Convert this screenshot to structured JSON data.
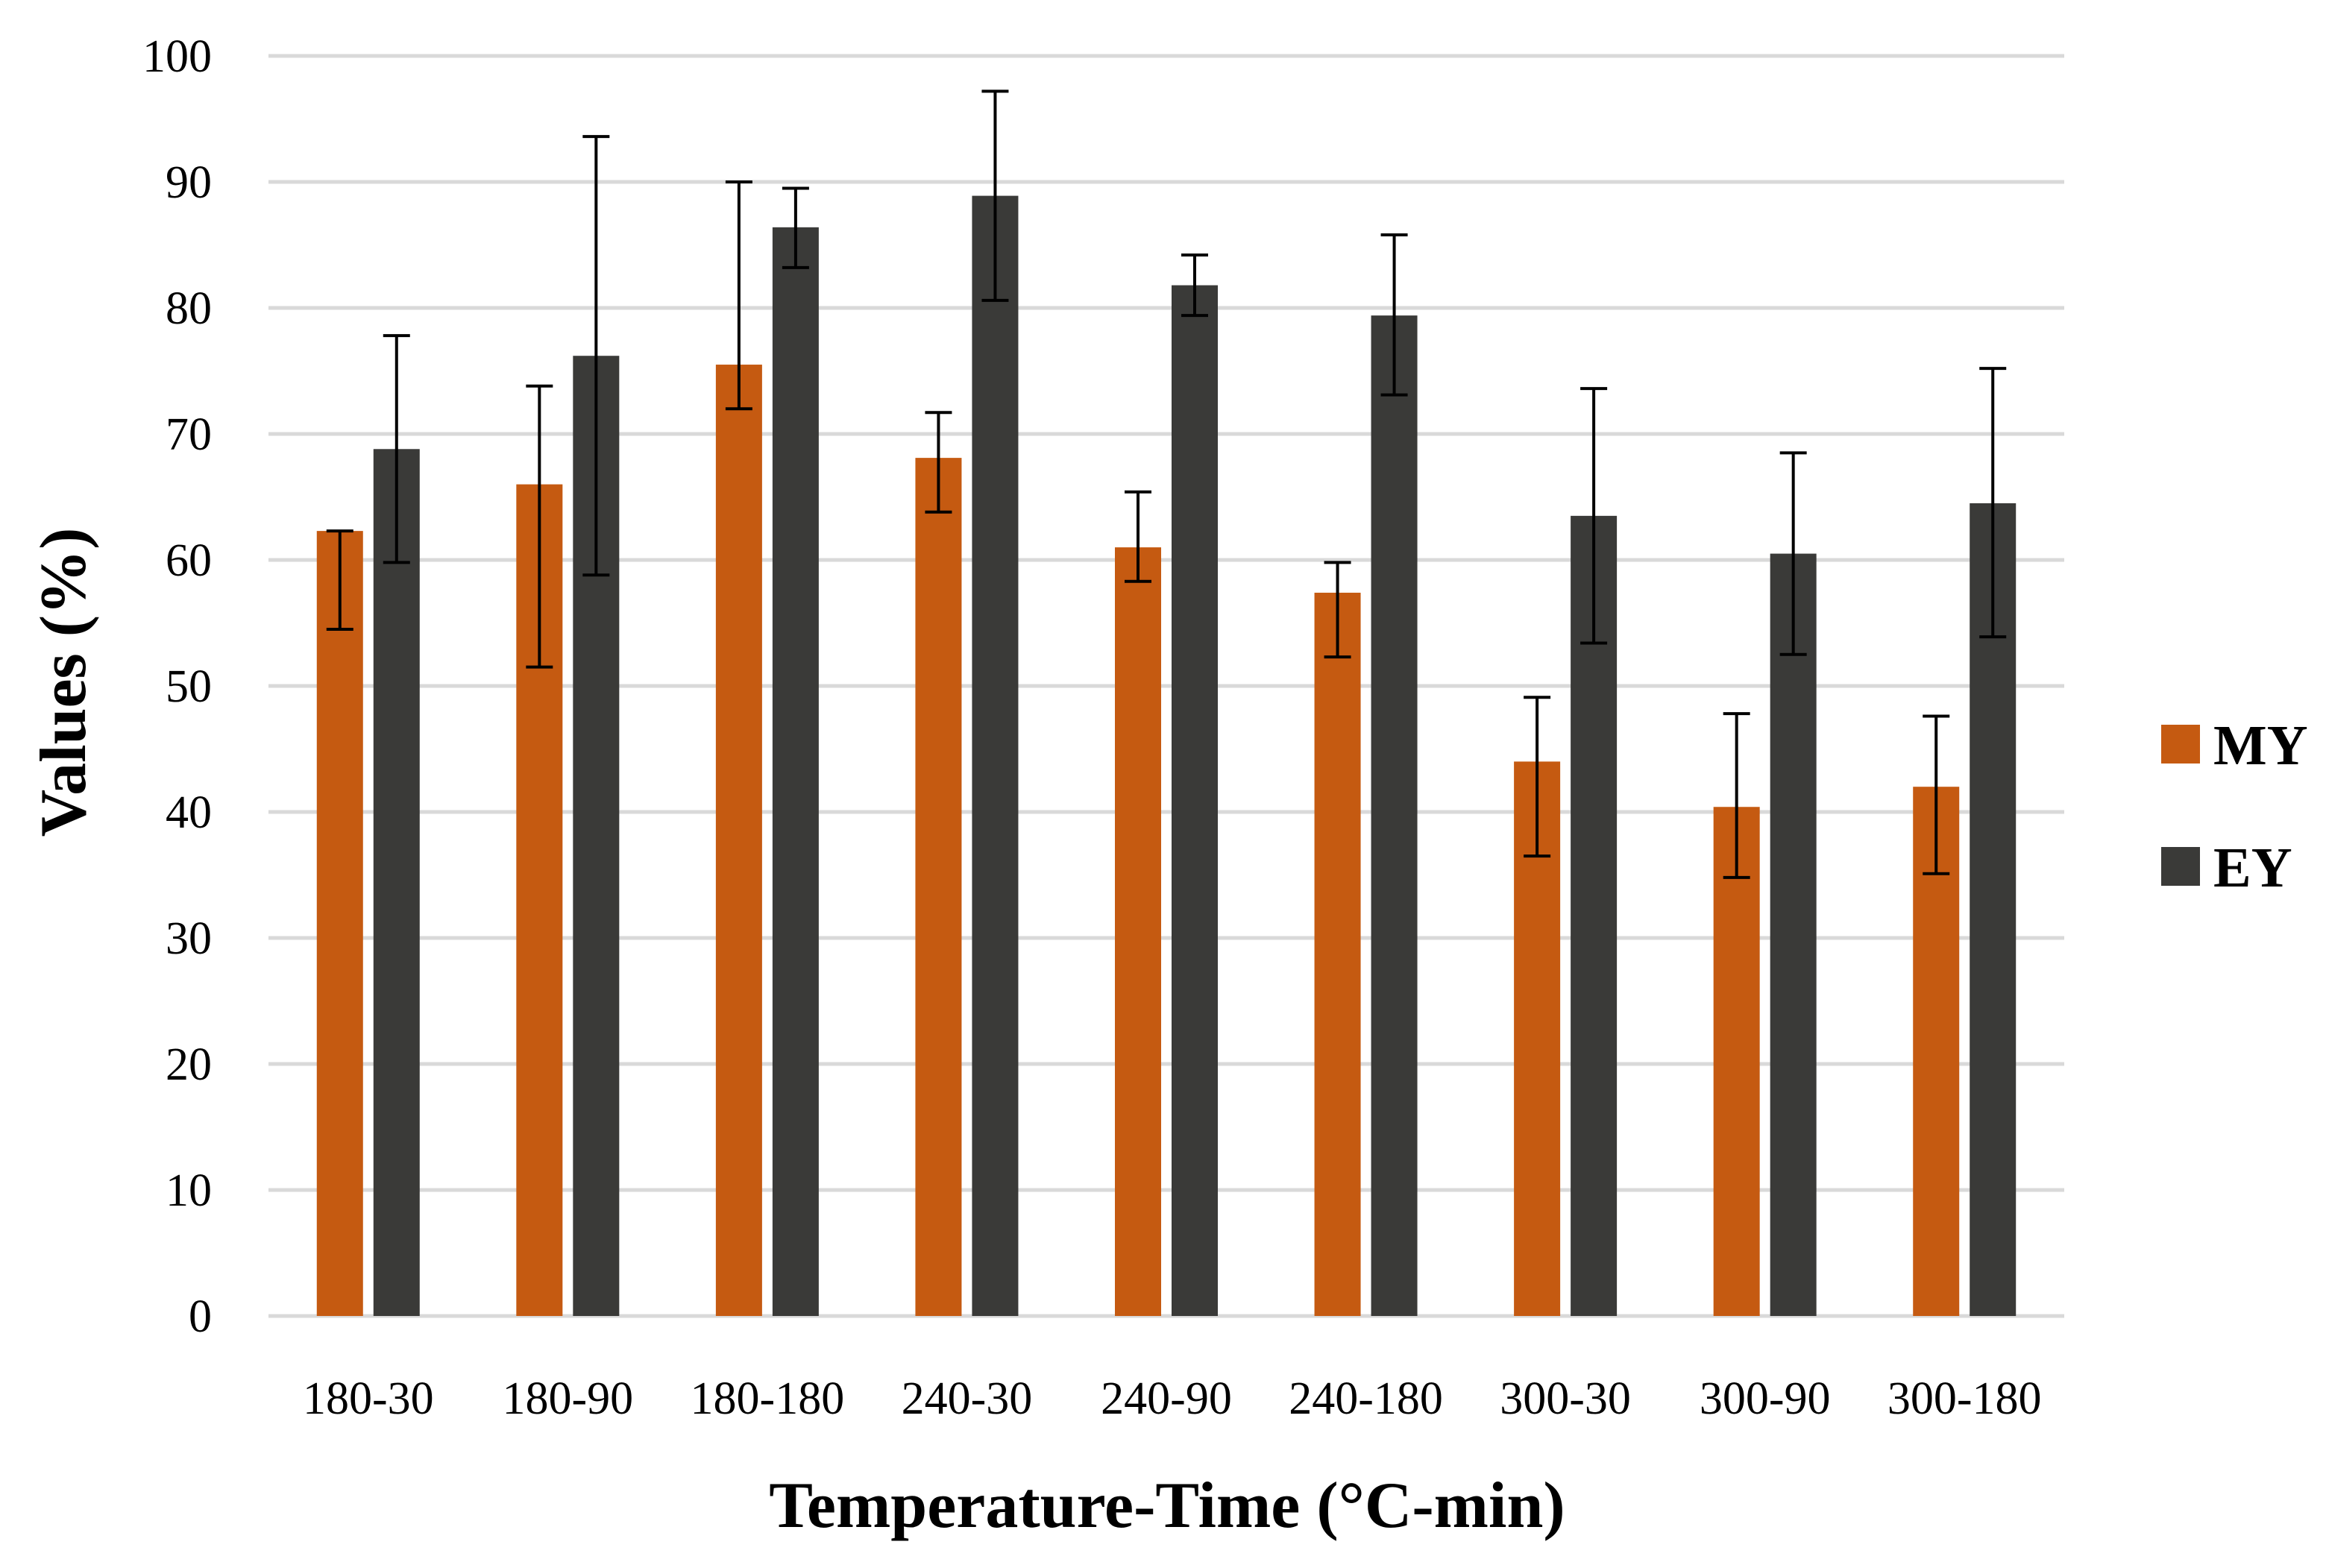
{
  "chart_data": {
    "type": "bar",
    "title": "",
    "xlabel": "Temperature-Time (°C-min)",
    "ylabel": "Values (%)",
    "ylim": [
      0,
      100
    ],
    "yticks": [
      "0",
      "10",
      "20",
      "30",
      "40",
      "50",
      "60",
      "70",
      "80",
      "90",
      "100"
    ],
    "grid": true,
    "legend_position": "right",
    "categories": [
      "180-30",
      "180-90",
      "180-180",
      "240-30",
      "240-90",
      "240-180",
      "300-30",
      "300-90",
      "300-180"
    ],
    "series": [
      {
        "name": "MY",
        "color": "#C55A11",
        "values": [
          62.3,
          66.0,
          75.5,
          68.1,
          61.0,
          57.4,
          44.0,
          40.4,
          42.0
        ],
        "error_low": [
          54.5,
          51.5,
          72.0,
          63.8,
          58.3,
          52.3,
          36.5,
          34.8,
          35.1
        ],
        "error_high": [
          62.3,
          73.8,
          90.0,
          71.7,
          65.4,
          59.8,
          49.1,
          47.8,
          47.6
        ]
      },
      {
        "name": "EY",
        "color": "#3A3A38",
        "values": [
          68.8,
          76.2,
          86.4,
          88.9,
          81.8,
          79.4,
          63.5,
          60.5,
          64.5
        ],
        "error_low": [
          59.8,
          58.8,
          83.2,
          80.6,
          79.4,
          73.1,
          53.4,
          52.5,
          53.9
        ],
        "error_high": [
          77.8,
          93.6,
          89.5,
          97.2,
          84.2,
          85.8,
          73.6,
          68.5,
          75.2
        ]
      }
    ]
  },
  "colors": {
    "gridline": "#D9D9D9",
    "axis": "#D9D9D9",
    "error_bar": "#000000"
  }
}
